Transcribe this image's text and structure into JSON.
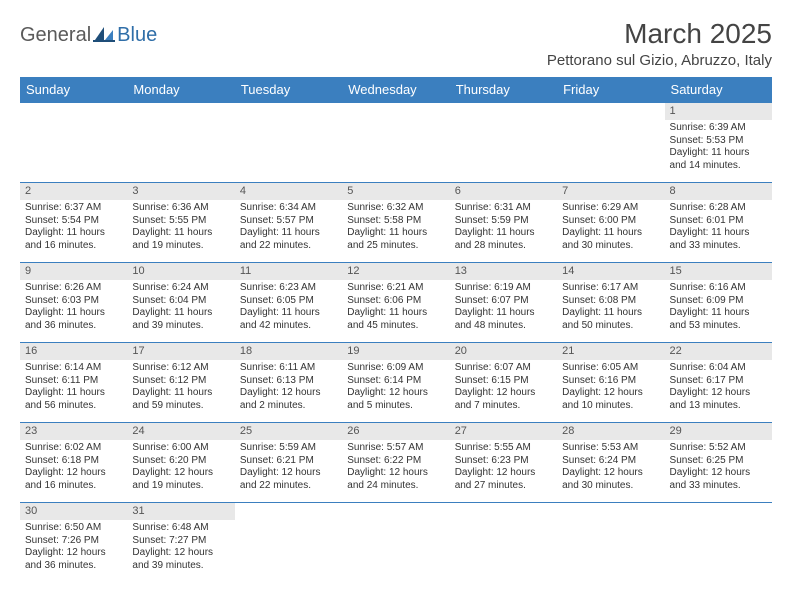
{
  "logo": {
    "general": "General",
    "blue": "Blue"
  },
  "title": "March 2025",
  "location": "Pettorano sul Gizio, Abruzzo, Italy",
  "colors": {
    "header_bg": "#3b7fbf",
    "header_text": "#ffffff",
    "daynum_bg": "#e8e8e8",
    "border": "#3b7fbf",
    "logo_general": "#5a5a5a",
    "logo_blue": "#2f6ea8",
    "body_text": "#333333"
  },
  "weekdays": [
    "Sunday",
    "Monday",
    "Tuesday",
    "Wednesday",
    "Thursday",
    "Friday",
    "Saturday"
  ],
  "grid": [
    [
      null,
      null,
      null,
      null,
      null,
      null,
      {
        "d": "1",
        "sr": "Sunrise: 6:39 AM",
        "ss": "Sunset: 5:53 PM",
        "dl": "Daylight: 11 hours and 14 minutes."
      }
    ],
    [
      {
        "d": "2",
        "sr": "Sunrise: 6:37 AM",
        "ss": "Sunset: 5:54 PM",
        "dl": "Daylight: 11 hours and 16 minutes."
      },
      {
        "d": "3",
        "sr": "Sunrise: 6:36 AM",
        "ss": "Sunset: 5:55 PM",
        "dl": "Daylight: 11 hours and 19 minutes."
      },
      {
        "d": "4",
        "sr": "Sunrise: 6:34 AM",
        "ss": "Sunset: 5:57 PM",
        "dl": "Daylight: 11 hours and 22 minutes."
      },
      {
        "d": "5",
        "sr": "Sunrise: 6:32 AM",
        "ss": "Sunset: 5:58 PM",
        "dl": "Daylight: 11 hours and 25 minutes."
      },
      {
        "d": "6",
        "sr": "Sunrise: 6:31 AM",
        "ss": "Sunset: 5:59 PM",
        "dl": "Daylight: 11 hours and 28 minutes."
      },
      {
        "d": "7",
        "sr": "Sunrise: 6:29 AM",
        "ss": "Sunset: 6:00 PM",
        "dl": "Daylight: 11 hours and 30 minutes."
      },
      {
        "d": "8",
        "sr": "Sunrise: 6:28 AM",
        "ss": "Sunset: 6:01 PM",
        "dl": "Daylight: 11 hours and 33 minutes."
      }
    ],
    [
      {
        "d": "9",
        "sr": "Sunrise: 6:26 AM",
        "ss": "Sunset: 6:03 PM",
        "dl": "Daylight: 11 hours and 36 minutes."
      },
      {
        "d": "10",
        "sr": "Sunrise: 6:24 AM",
        "ss": "Sunset: 6:04 PM",
        "dl": "Daylight: 11 hours and 39 minutes."
      },
      {
        "d": "11",
        "sr": "Sunrise: 6:23 AM",
        "ss": "Sunset: 6:05 PM",
        "dl": "Daylight: 11 hours and 42 minutes."
      },
      {
        "d": "12",
        "sr": "Sunrise: 6:21 AM",
        "ss": "Sunset: 6:06 PM",
        "dl": "Daylight: 11 hours and 45 minutes."
      },
      {
        "d": "13",
        "sr": "Sunrise: 6:19 AM",
        "ss": "Sunset: 6:07 PM",
        "dl": "Daylight: 11 hours and 48 minutes."
      },
      {
        "d": "14",
        "sr": "Sunrise: 6:17 AM",
        "ss": "Sunset: 6:08 PM",
        "dl": "Daylight: 11 hours and 50 minutes."
      },
      {
        "d": "15",
        "sr": "Sunrise: 6:16 AM",
        "ss": "Sunset: 6:09 PM",
        "dl": "Daylight: 11 hours and 53 minutes."
      }
    ],
    [
      {
        "d": "16",
        "sr": "Sunrise: 6:14 AM",
        "ss": "Sunset: 6:11 PM",
        "dl": "Daylight: 11 hours and 56 minutes."
      },
      {
        "d": "17",
        "sr": "Sunrise: 6:12 AM",
        "ss": "Sunset: 6:12 PM",
        "dl": "Daylight: 11 hours and 59 minutes."
      },
      {
        "d": "18",
        "sr": "Sunrise: 6:11 AM",
        "ss": "Sunset: 6:13 PM",
        "dl": "Daylight: 12 hours and 2 minutes."
      },
      {
        "d": "19",
        "sr": "Sunrise: 6:09 AM",
        "ss": "Sunset: 6:14 PM",
        "dl": "Daylight: 12 hours and 5 minutes."
      },
      {
        "d": "20",
        "sr": "Sunrise: 6:07 AM",
        "ss": "Sunset: 6:15 PM",
        "dl": "Daylight: 12 hours and 7 minutes."
      },
      {
        "d": "21",
        "sr": "Sunrise: 6:05 AM",
        "ss": "Sunset: 6:16 PM",
        "dl": "Daylight: 12 hours and 10 minutes."
      },
      {
        "d": "22",
        "sr": "Sunrise: 6:04 AM",
        "ss": "Sunset: 6:17 PM",
        "dl": "Daylight: 12 hours and 13 minutes."
      }
    ],
    [
      {
        "d": "23",
        "sr": "Sunrise: 6:02 AM",
        "ss": "Sunset: 6:18 PM",
        "dl": "Daylight: 12 hours and 16 minutes."
      },
      {
        "d": "24",
        "sr": "Sunrise: 6:00 AM",
        "ss": "Sunset: 6:20 PM",
        "dl": "Daylight: 12 hours and 19 minutes."
      },
      {
        "d": "25",
        "sr": "Sunrise: 5:59 AM",
        "ss": "Sunset: 6:21 PM",
        "dl": "Daylight: 12 hours and 22 minutes."
      },
      {
        "d": "26",
        "sr": "Sunrise: 5:57 AM",
        "ss": "Sunset: 6:22 PM",
        "dl": "Daylight: 12 hours and 24 minutes."
      },
      {
        "d": "27",
        "sr": "Sunrise: 5:55 AM",
        "ss": "Sunset: 6:23 PM",
        "dl": "Daylight: 12 hours and 27 minutes."
      },
      {
        "d": "28",
        "sr": "Sunrise: 5:53 AM",
        "ss": "Sunset: 6:24 PM",
        "dl": "Daylight: 12 hours and 30 minutes."
      },
      {
        "d": "29",
        "sr": "Sunrise: 5:52 AM",
        "ss": "Sunset: 6:25 PM",
        "dl": "Daylight: 12 hours and 33 minutes."
      }
    ],
    [
      {
        "d": "30",
        "sr": "Sunrise: 6:50 AM",
        "ss": "Sunset: 7:26 PM",
        "dl": "Daylight: 12 hours and 36 minutes."
      },
      {
        "d": "31",
        "sr": "Sunrise: 6:48 AM",
        "ss": "Sunset: 7:27 PM",
        "dl": "Daylight: 12 hours and 39 minutes."
      },
      null,
      null,
      null,
      null,
      null
    ]
  ]
}
